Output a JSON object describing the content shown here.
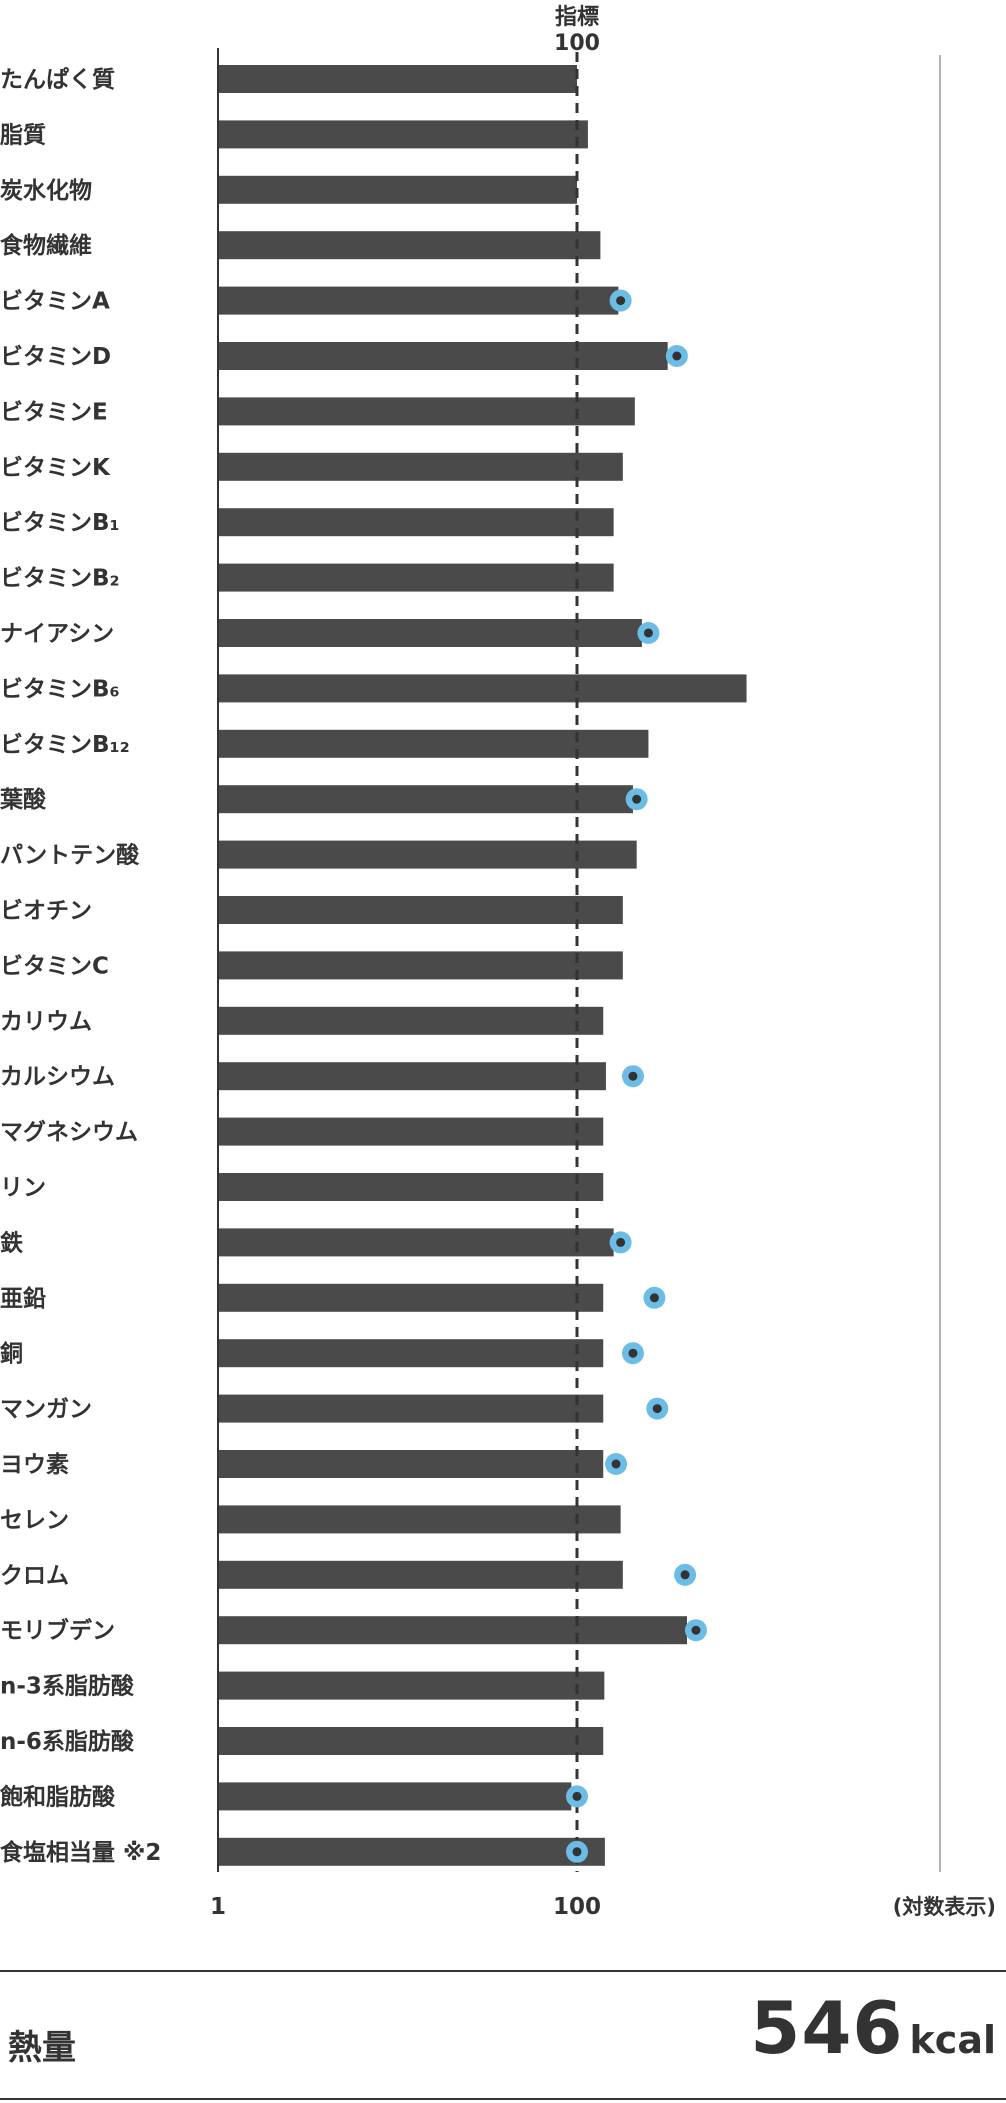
{
  "chart_data": {
    "type": "bar",
    "orientation": "horizontal",
    "scale": "log",
    "categories": [
      "たんぱく質",
      "脂質",
      "炭水化物",
      "食物繊維",
      "ビタミンA",
      "ビタミンD",
      "ビタミンE",
      "ビタミンK",
      "ビタミンB₁",
      "ビタミンB₂",
      "ナイアシン",
      "ビタミンB₆",
      "ビタミンB₁₂",
      "葉酸",
      "パントテン酸",
      "ビオチン",
      "ビタミンC",
      "カリウム",
      "カルシウム",
      "マグネシウム",
      "リン",
      "鉄",
      "亜鉛",
      "銅",
      "マンガン",
      "ヨウ素",
      "セレン",
      "クロム",
      "モリブデン",
      "n-3系脂肪酸",
      "n-6系脂肪酸",
      "飽和脂肪酸",
      "食塩相当量 ※2"
    ],
    "values": [
      100,
      115,
      100,
      135,
      170,
      320,
      210,
      180,
      160,
      160,
      230,
      880,
      250,
      205,
      215,
      180,
      180,
      140,
      145,
      140,
      140,
      160,
      140,
      140,
      140,
      140,
      175,
      180,
      410,
      142,
      140,
      93,
      143
    ],
    "markers": [
      null,
      null,
      null,
      null,
      175,
      360,
      null,
      null,
      null,
      null,
      250,
      null,
      null,
      215,
      null,
      null,
      null,
      null,
      205,
      null,
      null,
      175,
      270,
      205,
      280,
      165,
      null,
      400,
      460,
      null,
      null,
      100,
      100
    ],
    "marker_values_note": "",
    "xlim": [
      1,
      10000
    ],
    "reference_value": 100,
    "reference_label_top": "指標",
    "reference_label_value": "100",
    "x_tick_labels": [
      "1",
      "100"
    ],
    "scale_note": "(対数表示)",
    "title": "",
    "xlabel": "",
    "ylabel": "",
    "colors": {
      "bar": "#4a4a4a",
      "marker": "#6bbde6",
      "marker_center": "#333333",
      "text": "#333333"
    }
  },
  "energy": {
    "label": "熱量",
    "value": "546",
    "unit": "kcal"
  }
}
